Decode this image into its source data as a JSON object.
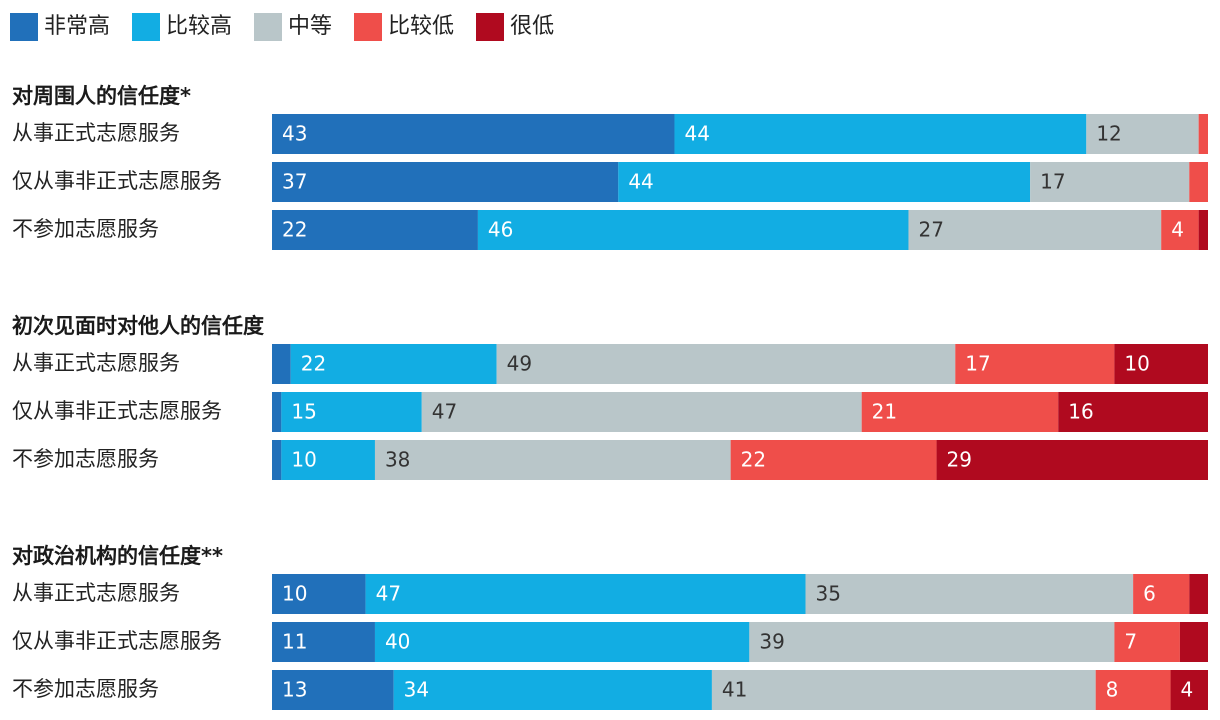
{
  "legend": [
    {
      "label": "非常高",
      "color": "#2170ba"
    },
    {
      "label": "比较高",
      "color": "#12ade3"
    },
    {
      "label": "中等",
      "color": "#b9c6c9"
    },
    {
      "label": "比较低",
      "color": "#ef4e4a"
    },
    {
      "label": "很低",
      "color": "#b00a1f"
    }
  ],
  "chart_data": [
    {
      "type": "bar",
      "orientation": "horizontal",
      "stacked": true,
      "title": "对周围人的信任度*",
      "categories": [
        "从事正式志愿服务",
        "仅从事非正式志愿服务",
        "不参加志愿服务"
      ],
      "series": [
        {
          "name": "非常高",
          "values": [
            43,
            37,
            22
          ],
          "labels": [
            "43",
            "37",
            "22"
          ]
        },
        {
          "name": "比较高",
          "values": [
            44,
            44,
            46
          ],
          "labels": [
            "44",
            "44",
            "46"
          ]
        },
        {
          "name": "中等",
          "values": [
            12,
            17,
            27
          ],
          "labels": [
            "12",
            "17",
            "27"
          ]
        },
        {
          "name": "比较低",
          "values": [
            1,
            2,
            4
          ],
          "labels": [
            "",
            "",
            "4"
          ]
        },
        {
          "name": "很低",
          "values": [
            0,
            0,
            1
          ],
          "labels": [
            "",
            "",
            ""
          ]
        }
      ]
    },
    {
      "type": "bar",
      "orientation": "horizontal",
      "stacked": true,
      "title": "初次见面时对他人的信任度",
      "categories": [
        "从事正式志愿服务",
        "仅从事非正式志愿服务",
        "不参加志愿服务"
      ],
      "series": [
        {
          "name": "非常高",
          "values": [
            2,
            1,
            1
          ],
          "labels": [
            "",
            "",
            ""
          ]
        },
        {
          "name": "比较高",
          "values": [
            22,
            15,
            10
          ],
          "labels": [
            "22",
            "15",
            "10"
          ]
        },
        {
          "name": "中等",
          "values": [
            49,
            47,
            38
          ],
          "labels": [
            "49",
            "47",
            "38"
          ]
        },
        {
          "name": "比较低",
          "values": [
            17,
            21,
            22
          ],
          "labels": [
            "17",
            "21",
            "22"
          ]
        },
        {
          "name": "很低",
          "values": [
            10,
            16,
            29
          ],
          "labels": [
            "10",
            "16",
            "29"
          ]
        }
      ]
    },
    {
      "type": "bar",
      "orientation": "horizontal",
      "stacked": true,
      "title": "对政治机构的信任度**",
      "categories": [
        "从事正式志愿服务",
        "仅从事非正式志愿服务",
        "不参加志愿服务"
      ],
      "series": [
        {
          "name": "非常高",
          "values": [
            10,
            11,
            13
          ],
          "labels": [
            "10",
            "11",
            "13"
          ]
        },
        {
          "name": "比较高",
          "values": [
            47,
            40,
            34
          ],
          "labels": [
            "47",
            "40",
            "34"
          ]
        },
        {
          "name": "中等",
          "values": [
            35,
            39,
            41
          ],
          "labels": [
            "35",
            "39",
            "41"
          ]
        },
        {
          "name": "比较低",
          "values": [
            6,
            7,
            8
          ],
          "labels": [
            "6",
            "7",
            "8"
          ]
        },
        {
          "name": "很低",
          "values": [
            2,
            3,
            4
          ],
          "labels": [
            "",
            "",
            "4"
          ]
        }
      ]
    }
  ]
}
